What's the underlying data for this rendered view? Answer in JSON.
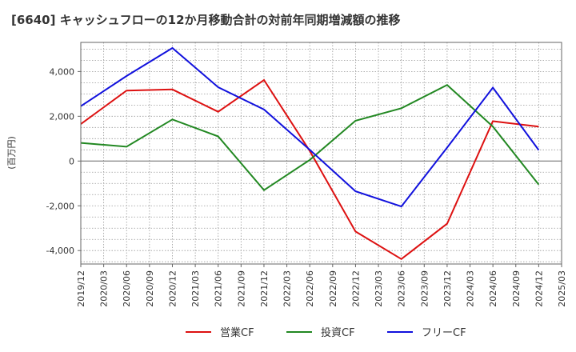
{
  "title": "[6640]  キャッシュフローの12か月移動合計の対前年同期増減額の推移",
  "chart_data": {
    "type": "line",
    "title": "[6640]  キャッシュフローの12か月移動合計の対前年同期増減額の推移",
    "xlabel": "",
    "ylabel": "(百万円)",
    "ylim": [
      -4600,
      5300
    ],
    "yticks": [
      -4000,
      -2000,
      0,
      2000,
      4000
    ],
    "ytick_labels": [
      "-4,000",
      "-2,000",
      "0",
      "2,000",
      "4,000"
    ],
    "categories": [
      "2019/12",
      "2020/03",
      "2020/06",
      "2020/09",
      "2020/12",
      "2021/03",
      "2021/06",
      "2021/09",
      "2021/12",
      "2022/03",
      "2022/06",
      "2022/09",
      "2022/12",
      "2023/03",
      "2023/06",
      "2023/09",
      "2023/12",
      "2024/03",
      "2024/06",
      "2024/09",
      "2024/12",
      "2025/03"
    ],
    "grid": true,
    "legend_position": "bottom",
    "series": [
      {
        "name": "営業CF",
        "color": "#dd1111",
        "x": [
          "2019/12",
          "2020/06",
          "2020/12",
          "2021/06",
          "2021/12",
          "2022/06",
          "2022/12",
          "2023/06",
          "2023/12",
          "2024/06",
          "2024/12"
        ],
        "values": [
          1650,
          3150,
          3200,
          2200,
          3620,
          450,
          -3150,
          -4380,
          -2800,
          1780,
          1540
        ]
      },
      {
        "name": "投資CF",
        "color": "#228822",
        "x": [
          "2019/12",
          "2020/06",
          "2020/12",
          "2021/06",
          "2021/12",
          "2022/06",
          "2022/12",
          "2023/06",
          "2023/12",
          "2024/06",
          "2024/12"
        ],
        "values": [
          810,
          640,
          1860,
          1100,
          -1300,
          50,
          1800,
          2360,
          3400,
          1540,
          -1050
        ]
      },
      {
        "name": "フリーCF",
        "color": "#1111dd",
        "x": [
          "2019/12",
          "2020/06",
          "2020/12",
          "2021/06",
          "2021/12",
          "2022/06",
          "2022/12",
          "2023/06",
          "2023/12",
          "2024/06",
          "2024/12"
        ],
        "values": [
          2450,
          3800,
          5050,
          3300,
          2300,
          500,
          -1350,
          -2030,
          600,
          3280,
          490
        ]
      }
    ]
  }
}
